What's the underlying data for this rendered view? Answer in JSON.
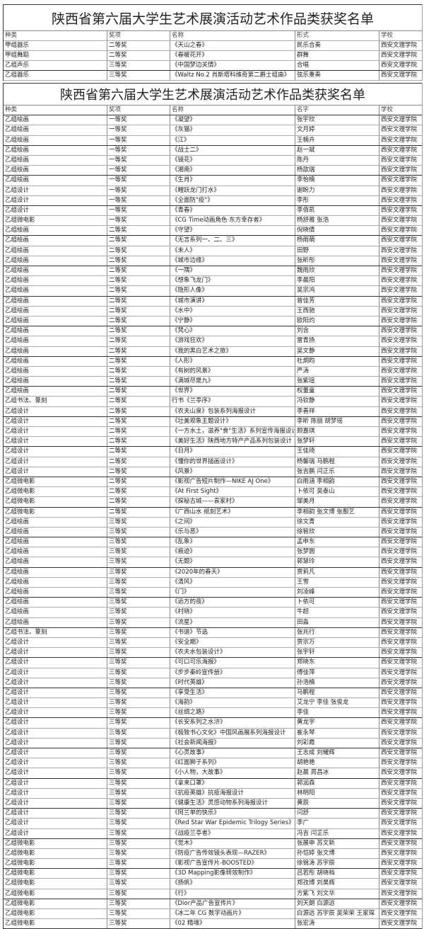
{
  "table1": {
    "title": "陕西省第六届大学生艺术展演活动艺术作品类获奖名单",
    "headers": [
      "种类",
      "奖项",
      "名称",
      "形式",
      "学校"
    ],
    "rows": [
      [
        "甲组器乐",
        "二等奖",
        "《天山之春》",
        "民乐合奏",
        "西安文理学院"
      ],
      [
        "甲组舞蹈",
        "二等奖",
        "《春暖花开》",
        "群舞",
        "西安文理学院"
      ],
      [
        "乙组声乐",
        "三等奖",
        "《中国梦边关情》",
        "合唱",
        "西安文理学院"
      ],
      [
        "乙组器乐",
        "三等奖",
        "《Waltz No.2 肖斯塔科维奇第二爵士组曲》",
        "弦乐重奏",
        "西安文理学院"
      ]
    ]
  },
  "table2": {
    "title": "陕西省第六届大学生艺术展演活动艺术作品类获奖名单",
    "headers": [
      "种类",
      "奖项",
      "名称",
      "名字",
      "学校"
    ],
    "rows": [
      [
        "乙组绘画",
        "一等奖",
        "《凝望》",
        "张宇欣",
        "西安文理学院"
      ],
      [
        "乙组绘画",
        "一等奖",
        "《灰猫》",
        "文月婷",
        "西安文理学院"
      ],
      [
        "乙组绘画",
        "一等奖",
        "《江》",
        "王楠卉",
        "西安文理学院"
      ],
      [
        "乙组绘画",
        "一等奖",
        "《战士二》",
        "赵一斌",
        "西安文理学院"
      ],
      [
        "乙组绘画",
        "一等奖",
        "《镜花》",
        "陈丹",
        "西安文理学院"
      ],
      [
        "乙组绘画",
        "一等奖",
        "《湘南》",
        "杨歆瑞",
        "西安文理学院"
      ],
      [
        "乙组绘画",
        "一等奖",
        "《生肖》",
        "李怡楠",
        "西安文理学院"
      ],
      [
        "乙组设计",
        "一等奖",
        "《鲤跃龙门打水》",
        "谢盼力",
        "西安文理学院"
      ],
      [
        "乙组设计",
        "一等奖",
        "《全面防\"疫\"》",
        "李彤",
        "西安文理学院"
      ],
      [
        "乙组设计",
        "一等奖",
        "《青春》",
        "李佰凯",
        "西安文理学院"
      ],
      [
        "乙组微电影",
        "一等奖",
        "《CG Time动画角色·东方幸存者》",
        "杨舒雅 张浩",
        "西安文理学院"
      ],
      [
        "乙组绘画",
        "二等奖",
        "《守望》",
        "倪晓倩",
        "西安文理学院"
      ],
      [
        "乙组绘画",
        "二等奖",
        "《无言系列一、二、三》",
        "杨雨萌",
        "西安文理学院"
      ],
      [
        "乙组绘画",
        "二等奖",
        "《未人》",
        "田野",
        "西安文理学院"
      ],
      [
        "乙组绘画",
        "二等奖",
        "《城市边缘》",
        "张昕彤",
        "西安文理学院"
      ],
      [
        "乙组绘画",
        "二等奖",
        "《一隅》",
        "魏雨欣",
        "西安文理学院"
      ],
      [
        "乙组绘画",
        "二等奖",
        "《想象飞龙门》",
        "李晨阳",
        "西安文理学院"
      ],
      [
        "乙组绘画",
        "二等奖",
        "《隐形人像》",
        "吴宗鸿",
        "西安文理学院"
      ],
      [
        "乙组绘画",
        "二等奖",
        "《城市演讲》",
        "曾佳芳",
        "西安文理学院"
      ],
      [
        "乙组绘画",
        "二等奖",
        "《水中》",
        "王西驰",
        "西安文理学院"
      ],
      [
        "乙组绘画",
        "二等奖",
        "《宁静》",
        "欧阳灼",
        "西安文理学院"
      ],
      [
        "乙组绘画",
        "二等奖",
        "《梵心》",
        "刘含",
        "西安文理学院"
      ],
      [
        "乙组绘画",
        "二等奖",
        "《游戏狂欢》",
        "雷青扬",
        "西安文理学院"
      ],
      [
        "乙组绘画",
        "二等奖",
        "《我的黑白艺术之旅》",
        "吴文静",
        "西安文理学院"
      ],
      [
        "乙组绘画",
        "二等奖",
        "《人形》",
        "杜炯昀",
        "西安文理学院"
      ],
      [
        "乙组绘画",
        "二等奖",
        "《有树的风景》",
        "严涛",
        "西安文理学院"
      ],
      [
        "乙组绘画",
        "二等奖",
        "《满城尽是九》",
        "张紫瑄",
        "西安文理学院"
      ],
      [
        "乙组绘画",
        "二等奖",
        "《世界》",
        "权董童",
        "西安文理学院"
      ],
      [
        "乙组书法、篆刻",
        "二等奖",
        "行书《兰亭序》",
        "冯钦静",
        "西安文理学院"
      ],
      [
        "乙组设计",
        "二等奖",
        "《农夫山泉》包装系列海报设计",
        "李善祥",
        "西安文理学院"
      ],
      [
        "乙组设计",
        "二等奖",
        "《壮美观象主题设计》",
        "李昕 陈丽 胡梦瑶",
        "西安文理学院"
      ],
      [
        "乙组设计",
        "二等奖",
        "《一方水土，滋养\"食\"生活》系列宣传海报设计",
        "顾嘉琪",
        "西安文理学院"
      ],
      [
        "乙组设计",
        "二等奖",
        "《美好生活》陕西地方特产产品系列包装设计",
        "张梦轩",
        "西安文理学院"
      ],
      [
        "乙组设计",
        "二等奖",
        "《日月》",
        "王佳琦",
        "西安文理学院"
      ],
      [
        "乙组设计",
        "二等奖",
        "《懂你的世界插画设计》",
        "杨馨瑞 马鹏程",
        "西安文理学院"
      ],
      [
        "乙组设计",
        "二等奖",
        "《风景》",
        "张吉鹏 闫正乐",
        "西安文理学院"
      ],
      [
        "乙组微电影",
        "二等奖",
        "《影视广告短片制作—NIKE AJ One》",
        "白雨涵 李相韵",
        "西安文理学院"
      ],
      [
        "乙组微电影",
        "二等奖",
        "《At First Sight》",
        "卜依可 吴泰山",
        "西安文理学院"
      ],
      [
        "乙组微电影",
        "二等奖",
        "《探秘古城——袁家村》",
        "邹美月",
        "西安文理学院"
      ],
      [
        "乙组微电影",
        "二等奖",
        "《广西山水 纸刻艺术》",
        "李相韵 张文博 张靓艺",
        "西安文理学院"
      ],
      [
        "乙组绘画",
        "三等奖",
        "《之间》",
        "徐文青",
        "西安文理学院"
      ],
      [
        "乙组绘画",
        "三等奖",
        "《乐与恶》",
        "徐智欣",
        "西安文理学院"
      ],
      [
        "乙组绘画",
        "三等奖",
        "《乱象》",
        "孟申东",
        "西安文理学院"
      ],
      [
        "乙组绘画",
        "三等奖",
        "《痕迹》",
        "张梦圆",
        "西安文理学院"
      ],
      [
        "乙组绘画",
        "三等奖",
        "《无题》",
        "郭慧玲",
        "西安文理学院"
      ],
      [
        "乙组绘画",
        "三等奖",
        "《2020年的春天》",
        "贾莉凡",
        "西安文理学院"
      ],
      [
        "乙组绘画",
        "三等奖",
        "《清风》",
        "王雪",
        "西安文理学院"
      ],
      [
        "乙组绘画",
        "三等奖",
        "《门》",
        "刘凌峰",
        "西安文理学院"
      ],
      [
        "乙组绘画",
        "三等奖",
        "《远方的夜》",
        "卜依可",
        "西安文理学院"
      ],
      [
        "乙组绘画",
        "三等奖",
        "《村晓》",
        "牛超",
        "西安文理学院"
      ],
      [
        "乙组绘画",
        "三等奖",
        "《流星》",
        "田淼",
        "西安文理学院"
      ],
      [
        "乙组书法、篆刻",
        "三等奖",
        "《书谱》节选",
        "张兆行",
        "西安文理学院"
      ],
      [
        "乙组设计",
        "三等奖",
        "《安全期》",
        "贾宗万",
        "西安文理学院"
      ],
      [
        "乙组设计",
        "三等奖",
        "《农夫水包装设计》",
        "张宇轩",
        "西安文理学院"
      ],
      [
        "乙组设计",
        "三等奖",
        "《可口可乐海报》",
        "郑晓东",
        "西安文理学院"
      ],
      [
        "乙组设计",
        "三等奖",
        "《步步秦岭宣传册》",
        "傅佳萍",
        "西安文理学院"
      ],
      [
        "乙组设计",
        "三等奖",
        "《时代英雄》",
        "孙浩楠",
        "西安文理学院"
      ],
      [
        "乙组设计",
        "三等奖",
        "《享受生活》",
        "马鹏程",
        "西安文理学院"
      ],
      [
        "乙组设计",
        "三等奖",
        "《海韵》",
        "艾龙宁 李佳 张俊龙",
        "西安文理学院"
      ],
      [
        "乙组设计",
        "三等奖",
        "《丝绸之路》",
        "李佳",
        "西安文理学院"
      ],
      [
        "乙组设计",
        "三等奖",
        "《长安系列之水浒》",
        "黄龙宇",
        "西安文理学院"
      ],
      [
        "乙组设计",
        "三等奖",
        "《极致书心文化》中国风画展系列海报设计",
        "崔永琴",
        "西安文理学院"
      ],
      [
        "乙组设计",
        "三等奖",
        "《社会新闻海报》",
        "刘彩霞",
        "西安文理学院"
      ],
      [
        "乙组设计",
        "三等奖",
        "《心灵故事》",
        "王志成 刘耀辉",
        "西安文理学院"
      ],
      [
        "乙组设计",
        "三等奖",
        "《红面狮子系列》",
        "胡艳艳",
        "西安文理学院"
      ],
      [
        "乙组设计",
        "三等奖",
        "《小人物，大故事》",
        "赵晨 周昌冰",
        "西安文理学院"
      ],
      [
        "乙组设计",
        "三等奖",
        "《拿来口罩》",
        "郭润森",
        "西安文理学院"
      ],
      [
        "乙组设计",
        "三等奖",
        "《抗疫英雄》抗疫海报设计",
        "林明阳",
        "西安文理学院"
      ],
      [
        "乙组设计",
        "三等奖",
        "《健康生活》灵感动物系列海报设计",
        "黄辰",
        "西安文理学院"
      ],
      [
        "乙组设计",
        "三等奖",
        "《阿兰单的快乐》",
        "闫舒",
        "西安文理学院"
      ],
      [
        "乙组设计",
        "三等奖",
        "《Red Star War Epidemic Trilogy Series》",
        "李广",
        "西安文理学院"
      ],
      [
        "乙组设计",
        "三等奖",
        "《战疫兰亭者》",
        "冯吉 闫芷乐",
        "西安文理学院"
      ],
      [
        "乙组微电影",
        "三等奖",
        "《觉木》",
        "张展申 苏文新",
        "西安文理学院"
      ],
      [
        "乙组微电影",
        "三等奖",
        "《防疫广告传效镜头表现—RAZER》",
        "孙恺婷 张文博",
        "西安文理学院"
      ],
      [
        "乙组微电影",
        "三等奖",
        "《影视广告宣传片-BOOSTED》",
        "徐锦涛 苏宇辰",
        "西安文理学院"
      ],
      [
        "乙组微电影",
        "三等奖",
        "《3D Mapping影像转效制作》",
        "吕若彤 胡晓档",
        "西安文理学院"
      ],
      [
        "乙组微电影",
        "三等奖",
        "《扬帆》",
        "郑孜博 刘昊辉",
        "西安文理学院"
      ],
      [
        "乙组微电影",
        "三等奖",
        "《行》",
        "方紫飞 刘文华",
        "西安文理学院"
      ],
      [
        "乙组微电影",
        "三等奖",
        "《Dior产品广告宣传片》",
        "刘天朗 白源远",
        "西安文理学院"
      ],
      [
        "乙组微电影",
        "三等奖",
        "《冰二年 CG 数字动画片》",
        "白源远 苏宇辰 吴荣荣 王家琛",
        "西安文理学院"
      ],
      [
        "乙组微电影",
        "三等奖",
        "《02 精魂》",
        "张宏涛",
        "西安文理学院"
      ]
    ]
  }
}
